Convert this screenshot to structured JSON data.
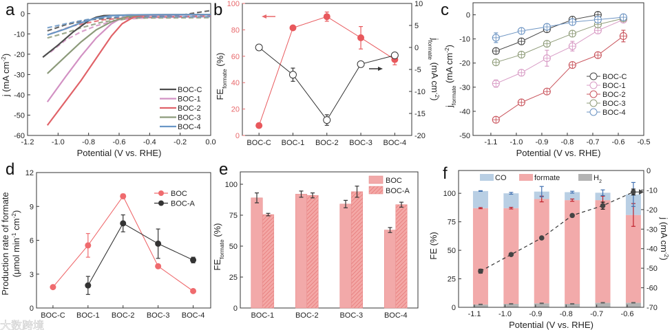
{
  "panel_labels": [
    "a",
    "b",
    "c",
    "d",
    "e",
    "f"
  ],
  "watermark": "大数跨境",
  "chart_data": [
    {
      "panel": "a",
      "type": "line",
      "xlabel": [
        {
          "t": "Potential (V vs. RHE)"
        }
      ],
      "ylabel": [
        {
          "t": "j (mA cm"
        },
        {
          "t": "-2",
          "sup": true
        },
        {
          "t": ")"
        }
      ],
      "xlim": [
        -1.2,
        0
      ],
      "ylim": [
        -60,
        5
      ],
      "xticks": [
        -1.2,
        -1.0,
        -0.8,
        -0.6,
        -0.4,
        -0.2,
        0.0
      ],
      "xtick_labels": [
        "-1.2",
        "-1.0",
        "-0.8",
        "-0.6",
        "-0.4",
        "-0.2",
        "0.0"
      ],
      "yticks": [
        -60,
        -50,
        -40,
        -30,
        -20,
        -10,
        0
      ],
      "ytick_labels": [
        "-60",
        "-50",
        "-40",
        "-30",
        "-20",
        "-10",
        "0"
      ],
      "legend": "bottom-right",
      "series": [
        {
          "name": "BOC-C",
          "color": "#4d4d4d",
          "solid": [
            [
              -1.1,
              -21.5
            ],
            [
              -1.0,
              -15.5
            ],
            [
              -0.9,
              -9
            ],
            [
              -0.8,
              -3.5
            ],
            [
              -0.75,
              -1.8
            ],
            [
              -0.7,
              -1
            ],
            [
              -0.5,
              -0.6
            ],
            [
              0,
              -0.5
            ]
          ],
          "dashed": [
            [
              -1.07,
              -8.5
            ],
            [
              -0.95,
              -5.5
            ],
            [
              -0.8,
              -3
            ],
            [
              -0.6,
              -2
            ],
            [
              -0.4,
              -1.5
            ],
            [
              -0.2,
              -0.8
            ],
            [
              0,
              1.5
            ]
          ]
        },
        {
          "name": "BOC-1",
          "color": "#d291c3",
          "solid": [
            [
              -1.07,
              -43.5
            ],
            [
              -0.95,
              -31
            ],
            [
              -0.85,
              -21
            ],
            [
              -0.75,
              -12
            ],
            [
              -0.65,
              -5
            ],
            [
              -0.58,
              -2
            ],
            [
              -0.5,
              -0.8
            ],
            [
              0,
              -0.5
            ]
          ],
          "dashed": [
            [
              -1.05,
              -19
            ],
            [
              -0.95,
              -13
            ],
            [
              -0.85,
              -9
            ],
            [
              -0.75,
              -6
            ],
            [
              -0.6,
              -3
            ],
            [
              -0.4,
              -2
            ],
            [
              0,
              -1.5
            ]
          ]
        },
        {
          "name": "BOC-2",
          "color": "#e06268",
          "solid": [
            [
              -1.07,
              -55
            ],
            [
              -0.95,
              -43
            ],
            [
              -0.85,
              -33
            ],
            [
              -0.75,
              -22
            ],
            [
              -0.65,
              -11
            ],
            [
              -0.58,
              -5
            ],
            [
              -0.5,
              -1.5
            ],
            [
              -0.4,
              -0.6
            ],
            [
              0,
              -0.5
            ]
          ],
          "dashed": [
            [
              -1.05,
              -10
            ],
            [
              -0.9,
              -6
            ],
            [
              -0.7,
              -3
            ],
            [
              -0.5,
              -1.8
            ],
            [
              0,
              -1.2
            ]
          ]
        },
        {
          "name": "BOC-3",
          "color": "#8c9a7a",
          "solid": [
            [
              -1.07,
              -29.5
            ],
            [
              -0.95,
              -21
            ],
            [
              -0.85,
              -14
            ],
            [
              -0.75,
              -8
            ],
            [
              -0.65,
              -4
            ],
            [
              -0.55,
              -1.5
            ],
            [
              -0.45,
              -0.6
            ],
            [
              0,
              -0.5
            ]
          ],
          "dashed": [
            [
              -1.07,
              -12
            ],
            [
              -0.95,
              -9.5
            ],
            [
              -0.85,
              -7
            ],
            [
              -0.7,
              -4
            ],
            [
              -0.5,
              -2.2
            ],
            [
              0,
              -2
            ]
          ]
        },
        {
          "name": "BOC-4",
          "color": "#6a96c6",
          "solid": [
            [
              -1.07,
              -10.5
            ],
            [
              -0.95,
              -7.5
            ],
            [
              -0.85,
              -4.5
            ],
            [
              -0.75,
              -2.2
            ],
            [
              -0.65,
              -1
            ],
            [
              -0.5,
              -0.6
            ],
            [
              0,
              -0.5
            ]
          ],
          "dashed": [
            [
              -1.07,
              -7
            ],
            [
              -0.95,
              -5
            ],
            [
              -0.85,
              -3.5
            ],
            [
              -0.75,
              -2.2
            ],
            [
              -0.6,
              -1.6
            ],
            [
              0,
              -1.5
            ]
          ]
        }
      ]
    },
    {
      "panel": "b",
      "type": "line",
      "categories": [
        "BOC-C",
        "BOC-1",
        "BOC-2",
        "BOC-3",
        "BOC-4"
      ],
      "ylabel": [
        {
          "t": "FE"
        },
        {
          "t": "formate",
          "sub": true
        },
        {
          "t": " (%)"
        }
      ],
      "y2label": [
        {
          "t": "j"
        },
        {
          "t": "formate",
          "sub": true
        },
        {
          "t": " (mA cm"
        },
        {
          "t": "-2",
          "sup": true
        },
        {
          "t": ")"
        }
      ],
      "ylim": [
        0,
        100
      ],
      "y2lim": [
        -20,
        10
      ],
      "yticks": [
        0,
        20,
        40,
        60,
        80,
        100
      ],
      "ytick_labels": [
        "0",
        "20",
        "40",
        "60",
        "80",
        "100"
      ],
      "y2ticks": [
        -20,
        -15,
        -10,
        -5,
        0,
        5,
        10
      ],
      "y2tick_labels": [
        "-20",
        "-15",
        "-10",
        "-5",
        "0",
        "5",
        "10"
      ],
      "fe": {
        "values": [
          7.5,
          81.5,
          90,
          74,
          57.5
        ],
        "errors": [
          0.5,
          1,
          3.5,
          8.5,
          4
        ],
        "color": "#e8585c"
      },
      "j": {
        "values": [
          0,
          -6.2,
          -16.5,
          -3.8,
          -1.8
        ],
        "errors": [
          0.3,
          1.5,
          1.2,
          0.4,
          0.4
        ],
        "color": "#333333"
      }
    },
    {
      "panel": "c",
      "type": "line",
      "xlabel": [
        {
          "t": "Potential (V vs. RHE)"
        }
      ],
      "ylabel": [
        {
          "t": "j"
        },
        {
          "t": "formate",
          "sub": true
        },
        {
          "t": " (mA cm"
        },
        {
          "t": "-2",
          "sup": true
        },
        {
          "t": ")"
        }
      ],
      "xlim": [
        -1.17,
        -0.5
      ],
      "ylim": [
        -50,
        5
      ],
      "xticks": [
        -1.1,
        -1.0,
        -0.9,
        -0.8,
        -0.7,
        -0.6,
        -0.5
      ],
      "xtick_labels": [
        "-1.1",
        "-1.0",
        "-0.9",
        "-0.8",
        "-0.7",
        "-0.6",
        "-0.5"
      ],
      "yticks": [
        -50,
        -40,
        -30,
        -20,
        -10,
        0
      ],
      "ytick_labels": [
        "-50",
        "-40",
        "-30",
        "-20",
        "-10",
        "0"
      ],
      "x": [
        -1.08,
        -0.98,
        -0.88,
        -0.78,
        -0.68,
        -0.58
      ],
      "legend": "center-right",
      "series": [
        {
          "name": "BOC-C",
          "color": "#444444",
          "values": [
            -15,
            -11,
            -6,
            -2,
            0,
            null
          ],
          "errors": [
            0.8,
            0.8,
            0.8,
            0.8,
            0.8,
            0
          ]
        },
        {
          "name": "BOC-1",
          "color": "#d89bc5",
          "values": [
            -28.5,
            -24,
            -18,
            -13,
            -6.5,
            -2
          ],
          "errors": [
            1.5,
            1.2,
            3.3,
            2,
            1.3,
            0.5
          ]
        },
        {
          "name": "BOC-2",
          "color": "#c9545c",
          "values": [
            -43.5,
            -36.3,
            -31.8,
            -20.8,
            -16.7,
            -8.8
          ],
          "errors": [
            0.8,
            0.8,
            0.8,
            0.8,
            0.8,
            2.4
          ]
        },
        {
          "name": "BOC-3",
          "color": "#8e9b78",
          "values": [
            -19.7,
            -16.5,
            -12,
            -7.8,
            -4,
            -1.5
          ],
          "errors": [
            0.8,
            0.8,
            0.8,
            0.8,
            0.8,
            0.5
          ]
        },
        {
          "name": "BOC-4",
          "color": "#6b93c2",
          "values": [
            -9.5,
            -6.7,
            -5,
            -3,
            -2,
            -1
          ],
          "errors": [
            2,
            0.8,
            0.8,
            0.8,
            0.8,
            0.5
          ]
        }
      ]
    },
    {
      "panel": "d",
      "type": "line",
      "categories": [
        "BOC-C",
        "BOC-1",
        "BOC-2",
        "BOC-3",
        "BOC-4"
      ],
      "ylabel": [
        {
          "t": "Production rate of formate"
        }
      ],
      "ylabel2": [
        {
          "t": "(μmol min"
        },
        {
          "t": "-1",
          "sup": true
        },
        {
          "t": " cm"
        },
        {
          "t": "-2",
          "sup": true
        },
        {
          "t": ")"
        }
      ],
      "ylim": [
        0,
        12
      ],
      "yticks": [
        0,
        3,
        6,
        9,
        12
      ],
      "ytick_labels": [
        "0",
        "3",
        "6",
        "9",
        "12"
      ],
      "legend": "top-right",
      "series": [
        {
          "name": "BOC",
          "color": "#ef6b6e",
          "values": [
            1.85,
            5.55,
            9.9,
            3.7,
            1.5
          ],
          "errors": [
            0.1,
            1.05,
            0.2,
            0.1,
            0.15
          ]
        },
        {
          "name": "BOC-A",
          "color": "#333333",
          "values": [
            null,
            2.0,
            7.5,
            5.7,
            4.25
          ],
          "errors": [
            0,
            0.8,
            0.75,
            1.3,
            0.25
          ]
        }
      ]
    },
    {
      "panel": "e",
      "type": "bar",
      "categories": [
        "BOC-1",
        "BOC-2",
        "BOC-3",
        "BOC-4"
      ],
      "ylabel": [
        {
          "t": "FE"
        },
        {
          "t": "formate",
          "sub": true
        },
        {
          "t": " (%)"
        }
      ],
      "ylim": [
        0,
        110
      ],
      "yticks": [
        0,
        25,
        50,
        75,
        100
      ],
      "ytick_labels": [
        "0",
        "25",
        "50",
        "75",
        "100"
      ],
      "legend": "top-right",
      "series": [
        {
          "name": "BOC",
          "color": "#f2a9a9",
          "hatched": false,
          "values": [
            89,
            92,
            84,
            63
          ],
          "errors": [
            4,
            2.5,
            3,
            2
          ]
        },
        {
          "name": "BOC-A",
          "color": "#f2a0a0",
          "hatched": true,
          "values": [
            75.5,
            91,
            94,
            83.5
          ],
          "errors": [
            1,
            2,
            4.5,
            2
          ]
        }
      ]
    },
    {
      "panel": "f",
      "type": "bar",
      "xlabel": [
        {
          "t": "Potential (V vs. RHE)"
        }
      ],
      "ylabel": [
        {
          "t": "FE (%)"
        }
      ],
      "y2label": [
        {
          "t": "j (mA cm"
        },
        {
          "t": "-2",
          "sup": true
        },
        {
          "t": ")"
        }
      ],
      "xlim": [
        -1.152,
        -0.546
      ],
      "ylim": [
        0,
        120
      ],
      "y2lim": [
        -70,
        0
      ],
      "x": [
        -1.08,
        -0.98,
        -0.88,
        -0.78,
        -0.68,
        -0.58
      ],
      "xticks": [
        -1.1,
        -1.0,
        -0.9,
        -0.8,
        -0.7,
        -0.6
      ],
      "xtick_labels": [
        "-1.1",
        "-1.0",
        "-0.9",
        "-0.8",
        "-0.7",
        "-0.6"
      ],
      "yticks": [
        0,
        25,
        50,
        75,
        100
      ],
      "ytick_labels": [
        "0",
        "25",
        "50",
        "75",
        "100"
      ],
      "y2ticks": [
        -70,
        -60,
        -50,
        -40,
        -30,
        -20,
        -10,
        0
      ],
      "y2tick_labels": [
        "-70",
        "-60",
        "-50",
        "-40",
        "-30",
        "-20",
        "-10",
        "0"
      ],
      "legend": "top",
      "stack": [
        {
          "name": [
            {
              "t": "H"
            },
            {
              "t": "2",
              "sub": true
            }
          ],
          "color": "#b3b3b3",
          "errcolor": "#666666",
          "values": [
            2.5,
            3,
            3.5,
            3,
            4,
            4
          ],
          "errors": [
            0.3,
            0.3,
            0.3,
            0.3,
            0.3,
            0.3
          ]
        },
        {
          "name": [
            {
              "t": "formate"
            }
          ],
          "color": "#f2aaaa",
          "errcolor": "#c0202a",
          "values": [
            84.5,
            84,
            91.5,
            91,
            90,
            77
          ],
          "errors": [
            0.5,
            0.7,
            2.5,
            1,
            3.5,
            10
          ]
        },
        {
          "name": [
            {
              "t": "CO"
            }
          ],
          "color": "#b9cfe4",
          "errcolor": "#3f6fb0",
          "values": [
            15,
            13,
            6.5,
            7,
            6.5,
            18
          ],
          "errors": [
            0.3,
            0.8,
            4.5,
            0.8,
            2.5,
            10.5
          ]
        }
      ],
      "j": {
        "values": [
          -51.5,
          -43,
          -34.5,
          -23,
          -18,
          -11
        ],
        "errors": [
          1,
          0.3,
          0.5,
          0.5,
          1.8,
          1.5
        ],
        "color": "#333333"
      }
    }
  ]
}
